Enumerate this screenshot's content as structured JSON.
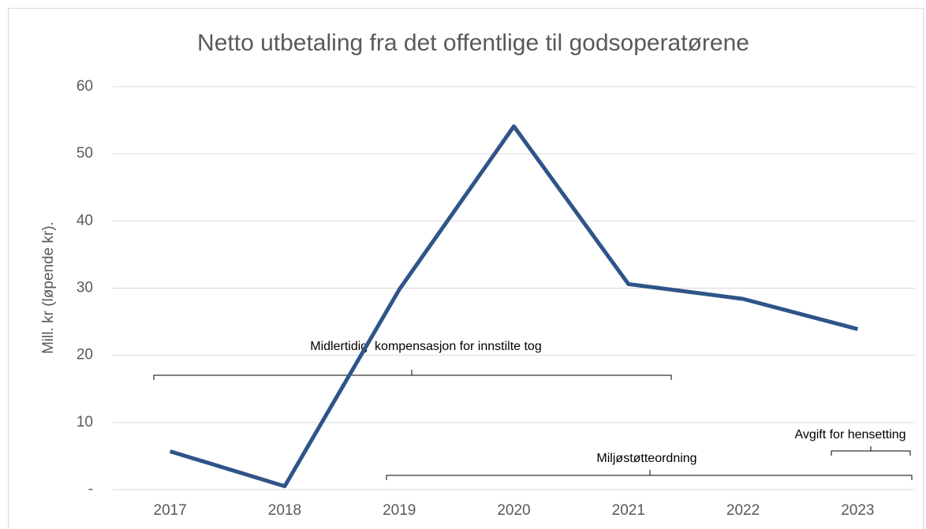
{
  "chart_data": {
    "type": "line",
    "title": "Netto utbetaling fra det offentlige til godsoperatørene",
    "y_label": "Mill. kr (løpende kr).",
    "categories": [
      "2017",
      "2018",
      "2019",
      "2020",
      "2021",
      "2022",
      "2023"
    ],
    "series": [
      {
        "name": "Netto utbetaling",
        "color": "#2f5488",
        "values": [
          5.7,
          0.5,
          29.8,
          54.1,
          30.6,
          28.4,
          23.9
        ]
      }
    ],
    "ylim": [
      0,
      60
    ],
    "yticks": [
      {
        "value": 0,
        "label": "-"
      },
      10,
      20,
      30,
      40,
      50,
      60
    ],
    "grid": true,
    "annotations": [
      "Midlertidig  kompensasjon for innstilte tog",
      "Miljøstøtteordning",
      "Avgift for hensetting"
    ]
  }
}
